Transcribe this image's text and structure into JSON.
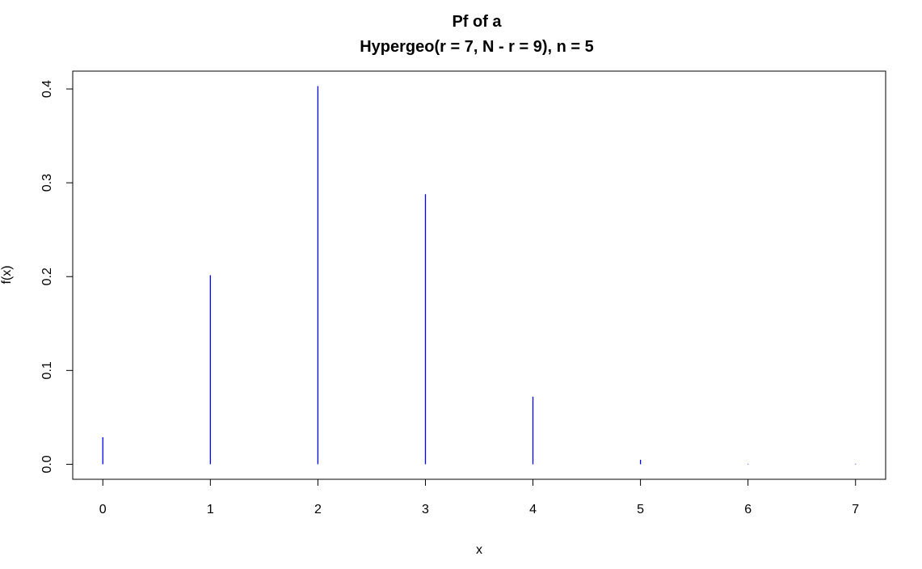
{
  "chart_data": {
    "type": "bar",
    "title": "Pf of a",
    "subtitle": "Hypergeo(r = 7,  N - r = 9), n = 5",
    "xlabel": "x",
    "ylabel": "f(x)",
    "x": [
      0,
      1,
      2,
      3,
      4,
      5,
      6,
      7
    ],
    "values": [
      0.0288,
      0.2015,
      0.4031,
      0.2879,
      0.072,
      0.0048,
      0.0,
      0.0
    ],
    "x_ticks": [
      "0",
      "1",
      "2",
      "3",
      "4",
      "5",
      "6",
      "7"
    ],
    "y_ticks": [
      "0.0",
      "0.1",
      "0.2",
      "0.3",
      "0.4"
    ],
    "xlim": [
      -0.28,
      7.28
    ],
    "ylim": [
      -0.016,
      0.419
    ],
    "grid": false,
    "colors": {
      "bars": "#0000ff",
      "axes": "#000000"
    }
  }
}
